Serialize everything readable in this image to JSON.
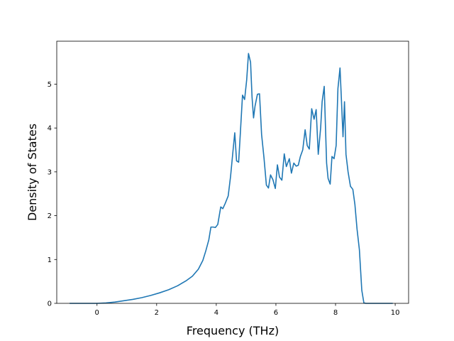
{
  "chart_data": {
    "type": "line",
    "title": "",
    "xlabel": "Frequency (THz)",
    "ylabel": "Density of States",
    "xlim": [
      -1.35,
      10.45
    ],
    "ylim": [
      0,
      5.98
    ],
    "xticks": [
      0,
      2,
      4,
      6,
      8,
      10
    ],
    "yticks": [
      0,
      1,
      2,
      3,
      4,
      5
    ],
    "grid": false,
    "legend": "none",
    "line_color": "#1f77b4",
    "series": [
      {
        "x": [
          -0.9,
          0.0,
          0.3,
          0.6,
          0.9,
          1.2,
          1.5,
          1.8,
          2.1,
          2.4,
          2.7,
          3.0,
          3.2,
          3.4,
          3.55,
          3.65,
          3.75,
          3.82,
          3.9,
          3.97,
          4.05,
          4.15,
          4.22,
          4.3,
          4.4,
          4.48,
          4.55,
          4.62,
          4.68,
          4.75,
          4.8,
          4.88,
          4.95,
          5.02,
          5.08,
          5.15,
          5.2,
          5.25,
          5.3,
          5.38,
          5.45,
          5.52,
          5.6,
          5.68,
          5.75,
          5.82,
          5.9,
          5.98,
          6.05,
          6.12,
          6.2,
          6.28,
          6.35,
          6.45,
          6.52,
          6.6,
          6.68,
          6.75,
          6.82,
          6.9,
          6.98,
          7.05,
          7.12,
          7.2,
          7.28,
          7.35,
          7.42,
          7.5,
          7.55,
          7.62,
          7.7,
          7.75,
          7.82,
          7.88,
          7.95,
          8.02,
          8.08,
          8.15,
          8.2,
          8.25,
          8.3,
          8.35,
          8.42,
          8.5,
          8.58,
          8.65,
          8.72,
          8.8,
          8.88,
          8.95,
          9.02,
          9.2,
          9.5,
          9.9
        ],
        "y": [
          0.0,
          0.0,
          0.01,
          0.03,
          0.06,
          0.09,
          0.13,
          0.18,
          0.24,
          0.31,
          0.4,
          0.52,
          0.62,
          0.78,
          0.98,
          1.2,
          1.45,
          1.74,
          1.74,
          1.73,
          1.8,
          2.2,
          2.16,
          2.28,
          2.45,
          2.9,
          3.4,
          3.89,
          3.25,
          3.22,
          3.8,
          4.75,
          4.65,
          5.1,
          5.7,
          5.5,
          4.7,
          4.23,
          4.5,
          4.77,
          4.78,
          3.85,
          3.32,
          2.7,
          2.63,
          2.93,
          2.82,
          2.62,
          3.16,
          2.88,
          2.81,
          3.41,
          3.12,
          3.3,
          2.97,
          3.2,
          3.13,
          3.15,
          3.35,
          3.5,
          3.96,
          3.6,
          3.52,
          4.44,
          4.2,
          4.42,
          3.4,
          4.0,
          4.6,
          4.95,
          3.2,
          2.85,
          2.72,
          3.35,
          3.3,
          3.6,
          4.9,
          5.37,
          4.6,
          3.8,
          4.6,
          3.4,
          3.0,
          2.67,
          2.6,
          2.25,
          1.7,
          1.22,
          0.3,
          0.01,
          0.0,
          0.0,
          0.0,
          0.0
        ]
      }
    ]
  }
}
